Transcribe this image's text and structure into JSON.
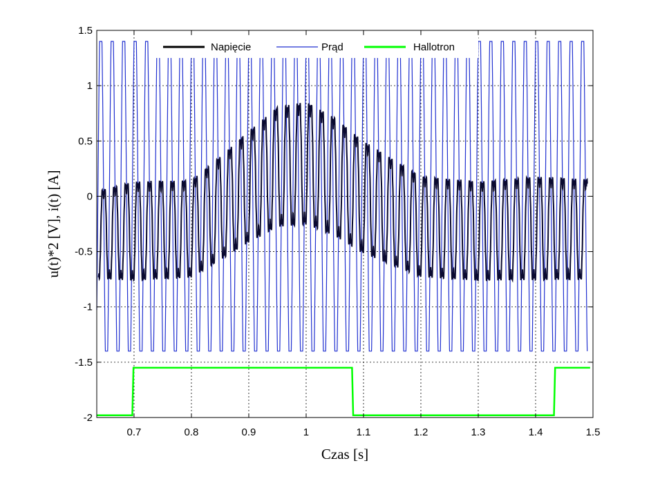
{
  "chart_data": {
    "type": "line",
    "xlabel": "Czas [s]",
    "ylabel": "u(t)*2 [V],  i(t) [A]",
    "xlim": [
      0.635,
      1.5
    ],
    "ylim": [
      -2.0,
      1.5
    ],
    "xticks": [
      0.7,
      0.8,
      0.9,
      1,
      1.1,
      1.2,
      1.3,
      1.4,
      1.5
    ],
    "xtick_labels": [
      "0.7",
      "0.8",
      "0.9",
      "1",
      "1.1",
      "1.2",
      "1.3",
      "1.4",
      "1.5"
    ],
    "yticks": [
      1.5,
      1,
      0.5,
      0,
      -0.5,
      -1,
      -1.5,
      -2
    ],
    "ytick_labels": [
      "1.5",
      "1",
      "0.5",
      "0",
      "-0.5",
      "-1",
      "-1.5",
      "-2"
    ],
    "grid": true,
    "legend_position": "top-center",
    "series": [
      {
        "name": "Napięcie",
        "color": "#000000",
        "description_frequency_hz": 50,
        "envelope_x": [
          0.635,
          0.7,
          0.8,
          0.85,
          0.9,
          0.95,
          1.0,
          1.05,
          1.1,
          1.2,
          1.3,
          1.4,
          1.5
        ],
        "envelope_upper": [
          0.15,
          0.25,
          0.26,
          0.48,
          0.72,
          0.95,
          1.0,
          0.85,
          0.63,
          0.3,
          0.25,
          0.3,
          0.27
        ],
        "envelope_lower": [
          -0.85,
          -0.88,
          -0.85,
          -0.7,
          -0.55,
          -0.42,
          -0.4,
          -0.5,
          -0.65,
          -0.85,
          -0.88,
          -0.88,
          -0.87
        ]
      },
      {
        "name": "Prąd",
        "color": "#1f2fd0",
        "frequency_hz": 50,
        "amplitude_upper": 1.4,
        "amplitude_lower": -1.4
      },
      {
        "name": "Hallotron",
        "color": "#00ff00",
        "x": [
          0.635,
          0.697,
          0.699,
          1.08,
          1.082,
          1.432,
          1.434,
          1.495
        ],
        "y": [
          -1.98,
          -1.98,
          -1.55,
          -1.55,
          -1.98,
          -1.98,
          -1.55,
          -1.55
        ]
      }
    ]
  }
}
